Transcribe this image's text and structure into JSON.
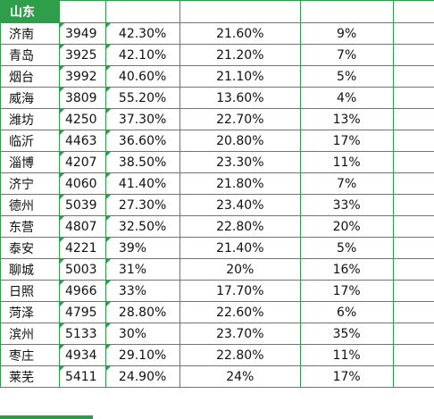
{
  "header": {
    "title": "山东"
  },
  "rows": [
    {
      "city": "济南",
      "value": "3949",
      "p1": "42.30%",
      "p2": "21.60%",
      "p3": "9%"
    },
    {
      "city": "青岛",
      "value": "3925",
      "p1": "42.10%",
      "p2": "21.20%",
      "p3": "7%"
    },
    {
      "city": "烟台",
      "value": "3992",
      "p1": "40.60%",
      "p2": "21.10%",
      "p3": "5%"
    },
    {
      "city": "威海",
      "value": "3809",
      "p1": "55.20%",
      "p2": "13.60%",
      "p3": "4%"
    },
    {
      "city": "潍坊",
      "value": "4250",
      "p1": "37.30%",
      "p2": "22.70%",
      "p3": "13%"
    },
    {
      "city": "临沂",
      "value": "4463",
      "p1": "36.60%",
      "p2": "20.80%",
      "p3": "17%"
    },
    {
      "city": "淄博",
      "value": "4207",
      "p1": "38.50%",
      "p2": "23.30%",
      "p3": "11%"
    },
    {
      "city": "济宁",
      "value": "4060",
      "p1": "41.40%",
      "p2": "21.80%",
      "p3": "7%"
    },
    {
      "city": "德州",
      "value": "5039",
      "p1": "27.30%",
      "p2": "23.40%",
      "p3": "33%"
    },
    {
      "city": "东营",
      "value": "4807",
      "p1": "32.50%",
      "p2": "22.80%",
      "p3": "20%"
    },
    {
      "city": "泰安",
      "value": "4221",
      "p1": "39%",
      "p2": "21.40%",
      "p3": "5%"
    },
    {
      "city": "聊城",
      "value": "5003",
      "p1": "31%",
      "p2": "20%",
      "p3": "16%"
    },
    {
      "city": "日照",
      "value": "4966",
      "p1": "33%",
      "p2": "17.70%",
      "p3": "17%"
    },
    {
      "city": "菏泽",
      "value": "4795",
      "p1": "28.80%",
      "p2": "22.60%",
      "p3": "6%"
    },
    {
      "city": "滨州",
      "value": "5133",
      "p1": "30%",
      "p2": "23.70%",
      "p3": "35%"
    },
    {
      "city": "枣庄",
      "value": "4934",
      "p1": "29.10%",
      "p2": "22.80%",
      "p3": "11%"
    },
    {
      "city": "莱芜",
      "value": "5411",
      "p1": "24.90%",
      "p2": "24%",
      "p3": "17%"
    }
  ],
  "colors": {
    "accent": "#2e9e4a",
    "text": "#111111",
    "header_text": "#ffffff"
  }
}
